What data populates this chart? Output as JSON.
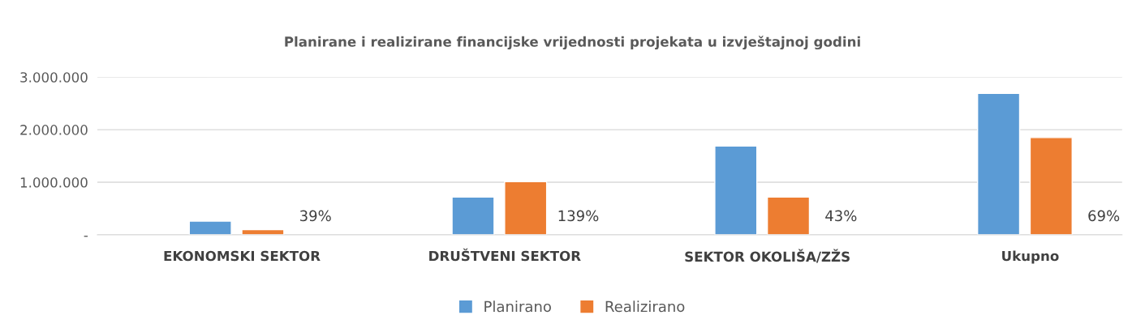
{
  "chart_data": {
    "type": "bar",
    "title": "Planirane i realizirane financijske vrijednosti projekata u izvještajnoj godini",
    "categories": [
      "EKONOMSKI SEKTOR",
      "DRUŠTVENI SEKTOR",
      "SEKTOR OKOLIŠA/ZŽS",
      "Ukupno"
    ],
    "series": [
      {
        "name": "Planirano",
        "color": "#5b9bd5",
        "values": [
          260000,
          720000,
          1690000,
          2690000
        ]
      },
      {
        "name": "Realizirano",
        "color": "#ed7d31",
        "values": [
          100000,
          1010000,
          720000,
          1850000
        ]
      }
    ],
    "ylim": [
      0,
      3000000
    ],
    "yticks": [
      {
        "value": 0,
        "label": "-"
      },
      {
        "value": 1000000,
        "label": "1.000.000"
      },
      {
        "value": 2000000,
        "label": "2.000.000"
      },
      {
        "value": 3000000,
        "label": "3.000.000"
      }
    ],
    "grid": "y",
    "legend": "bottom",
    "annotations": [
      "39%",
      "139%",
      "43%",
      "69%"
    ]
  }
}
